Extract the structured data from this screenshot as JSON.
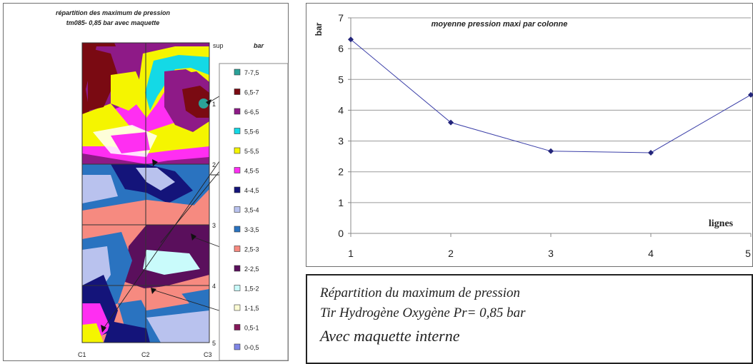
{
  "contour_chart": {
    "title_line1": "répartition des maximum de pression",
    "title_line2": "tm085- 0,85 bar avec maquette",
    "legend_title": "bar",
    "sup_label": "sup",
    "row_labels": [
      "1",
      "2",
      "3",
      "4",
      "5"
    ],
    "column_labels": [
      "C1",
      "C2",
      "C3"
    ],
    "legend": [
      {
        "label": "7-7,5",
        "color": "#2aa198"
      },
      {
        "label": "6,5-7",
        "color": "#7a0a12"
      },
      {
        "label": "6-6,5",
        "color": "#8e1a87"
      },
      {
        "label": "5,5-6",
        "color": "#14d9e6"
      },
      {
        "label": "5-5,5",
        "color": "#f5f500"
      },
      {
        "label": "4,5-5",
        "color": "#ff2ef2"
      },
      {
        "label": "4-4,5",
        "color": "#14147a"
      },
      {
        "label": "3,5-4",
        "color": "#b9c2ee"
      },
      {
        "label": "3-3,5",
        "color": "#2a73c0"
      },
      {
        "label": "2,5-3",
        "color": "#f68a80"
      },
      {
        "label": "2-2,5",
        "color": "#5a0f5c"
      },
      {
        "label": "1,5-2",
        "color": "#c9fbfb"
      },
      {
        "label": "1-1,5",
        "color": "#fbfbd4"
      },
      {
        "label": "0,5-1",
        "color": "#84195a"
      },
      {
        "label": "0-0,5",
        "color": "#7f86e6"
      }
    ]
  },
  "chart_data": {
    "type": "line",
    "title": "moyenne pression maxi par colonne",
    "ylabel": "bar",
    "xlabel": "lignes",
    "x": [
      1,
      2,
      3,
      4,
      5
    ],
    "y": [
      6.3,
      3.6,
      2.67,
      2.62,
      4.5
    ],
    "xlim": [
      1,
      5
    ],
    "ylim": [
      0,
      7
    ],
    "yticks": [
      0,
      1,
      2,
      3,
      4,
      5,
      6,
      7
    ],
    "grid": true,
    "series_color": "#3b3fa8"
  },
  "caption": {
    "line1": "Répartition du maximum de pression",
    "line2": "Tir Hydrogène Oxygène Pr= 0,85 bar",
    "line3": "Avec maquette interne"
  }
}
